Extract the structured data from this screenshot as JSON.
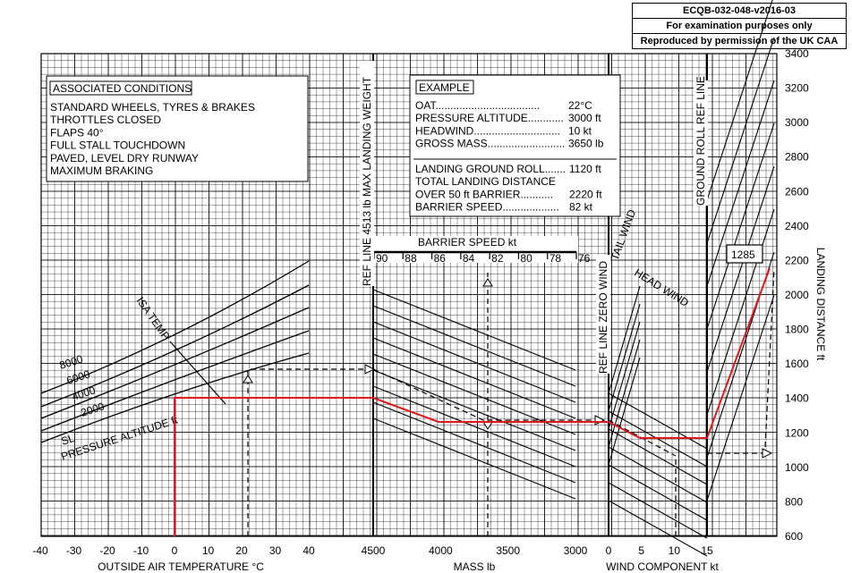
{
  "header": {
    "code": "ECQB-032-048-v2016-03",
    "note": "For examination purposes only",
    "permission": "Reproduced by permission of the UK CAA"
  },
  "conditions": {
    "title": "ASSOCIATED CONDITIONS",
    "lines": [
      "STANDARD WHEELS, TYRES & BRAKES",
      "THROTTLES CLOSED",
      "FLAPS  40°",
      "FULL STALL TOUCHDOWN",
      "PAVED, LEVEL DRY RUNWAY",
      "MAXIMUM BRAKING"
    ]
  },
  "example": {
    "title": "EXAMPLE",
    "rows": [
      {
        "label": "OAT...................................",
        "value": "22°C"
      },
      {
        "label": "PRESSURE ALTITUDE............",
        "value": "3000 ft"
      },
      {
        "label": "HEADWIND.............................",
        "value": "10 kt"
      },
      {
        "label": "GROSS MASS..........................",
        "value": "3650 lb"
      }
    ],
    "results": [
      {
        "label": "LANDING GROUND ROLL.......",
        "value": "1120 ft"
      },
      {
        "label": "TOTAL LANDING DISTANCE",
        "value": ""
      },
      {
        "label": "OVER 50 ft BARRIER...........",
        "value": "2220 ft"
      },
      {
        "label": "BARRIER SPEED...................",
        "value": "82 kt"
      }
    ]
  },
  "chart_data": {
    "type": "nomogram",
    "panels": [
      {
        "name": "temperature",
        "xlabel": "OUTSIDE AIR TEMPERATURE  °C",
        "x_ticks": [
          "-40",
          "-30",
          "-20",
          "-10",
          "0",
          "10",
          "20",
          "30",
          "40"
        ],
        "xlim": [
          -40,
          40
        ]
      },
      {
        "name": "mass",
        "xlabel": "MASS  lb",
        "x_ticks": [
          "4500",
          "4000",
          "3500",
          "3000"
        ],
        "xlim": [
          4500,
          3000
        ]
      },
      {
        "name": "wind",
        "xlabel": "WIND COMPONENT  kt",
        "x_ticks": [
          "0",
          "5",
          "10",
          "15"
        ],
        "xlim": [
          0,
          15
        ]
      }
    ],
    "ylabel": "LANDING DISTANCE  ft",
    "y_ticks": [
      "3400",
      "3200",
      "3000",
      "2800",
      "2600",
      "2400",
      "2200",
      "2000",
      "1800",
      "1600",
      "1400",
      "1200",
      "1000",
      "800",
      "600"
    ],
    "ylim": [
      600,
      3400
    ],
    "pressure_altitude_label": "PRESSURE ALTITUDE  ft",
    "pressure_altitudes": [
      "SL",
      "2000",
      "4000",
      "6000",
      "8000"
    ],
    "isa_temp_label": "ISA TEMP",
    "barrier_speed_label": "BARRIER SPEED  kt",
    "barrier_speed_ticks": [
      "90",
      "88",
      "86",
      "84",
      "82",
      "80",
      "78",
      "76"
    ],
    "ref_line_mass_label": "REF LINE  4513 lb MAX LANDING WEIGHT",
    "ref_line_wind_label": "REF LINE  ZERO WIND",
    "ground_roll_ref_label": "GROUND ROLL REF LINE",
    "tail_wind_label": "TAIL WIND",
    "head_wind_label": "HEAD WIND",
    "answer_box": "1285",
    "red_path": {
      "oat_c": 0,
      "landing_distance_ft": 1285
    },
    "example_path": {
      "oat_c": 22,
      "pressure_altitude_ft": 3000,
      "mass_lb": 3650,
      "headwind_kt": 10,
      "barrier_speed_kt": 82,
      "ground_roll_ft": 1120,
      "total_distance_ft": 2220
    },
    "colors": {
      "red_path": "#e0191b",
      "grid": "#000000"
    }
  }
}
